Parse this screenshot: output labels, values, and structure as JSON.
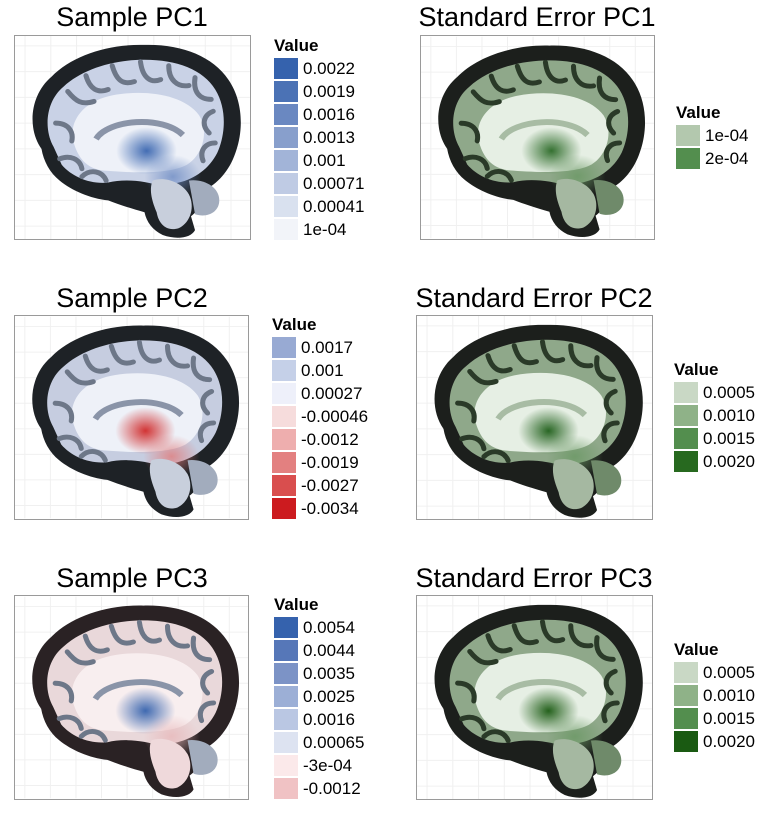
{
  "chart_data": [
    {
      "type": "heatmap",
      "title": "Sample PC1",
      "legend": {
        "title": "Value",
        "labels": [
          "0.0022",
          "0.0019",
          "0.0016",
          "0.0013",
          "0.001",
          "0.00071",
          "0.00041",
          "1e-04"
        ],
        "colors": [
          "#3562ad",
          "#4b72b5",
          "#6a88c1",
          "#889fcc",
          "#a2b4d8",
          "#bfcbe4",
          "#d9e1ef",
          "#f2f4f9"
        ]
      },
      "brain": {
        "theme": "blue",
        "hot": "#3a66b0",
        "accent": "#6e8cc4"
      }
    },
    {
      "type": "heatmap",
      "title": "Standard Error PC1",
      "legend": {
        "title": "Value",
        "labels": [
          "1e-04",
          "2e-04"
        ],
        "colors": [
          "#b3c8ae",
          "#538e4e"
        ]
      },
      "brain": {
        "theme": "green",
        "hot": "#2b6a27",
        "accent": "#6a9864"
      }
    },
    {
      "type": "heatmap",
      "title": "Sample PC2",
      "legend": {
        "title": "Value",
        "labels": [
          "0.0017",
          "0.001",
          "0.00027",
          "-0.00046",
          "-0.0012",
          "-0.0019",
          "-0.0027",
          "-0.0034"
        ],
        "colors": [
          "#98aad3",
          "#c5d0e8",
          "#eef0fa",
          "#f6dcdc",
          "#eeaeae",
          "#e38080",
          "#d94e4e",
          "#cc1b1f"
        ]
      },
      "brain": {
        "theme": "red",
        "hot": "#d02a2a",
        "accent": "#e07c7c"
      }
    },
    {
      "type": "heatmap",
      "title": "Standard Error PC2",
      "legend": {
        "title": "Value",
        "labels": [
          "0.0005",
          "0.0010",
          "0.0015",
          "0.0020"
        ],
        "colors": [
          "#c9d8c5",
          "#8fb288",
          "#538e4e",
          "#27691f"
        ]
      },
      "brain": {
        "theme": "green",
        "hot": "#1f5f1a",
        "accent": "#6a9864"
      }
    },
    {
      "type": "heatmap",
      "title": "Sample PC3",
      "legend": {
        "title": "Value",
        "labels": [
          "0.0054",
          "0.0044",
          "0.0035",
          "0.0025",
          "0.0016",
          "0.00065",
          "-3e-04",
          "-0.0012"
        ],
        "colors": [
          "#3562ad",
          "#5677b8",
          "#7c93c6",
          "#9cafd6",
          "#bac7e3",
          "#dde3f1",
          "#fbe9ea",
          "#f0c2c4"
        ]
      },
      "brain": {
        "theme": "pink",
        "hot": "#3562ad",
        "accent": "#e8b8ba"
      }
    },
    {
      "type": "heatmap",
      "title": "Standard Error PC3",
      "legend": {
        "title": "Value",
        "labels": [
          "0.0005",
          "0.0010",
          "0.0015",
          "0.0020"
        ],
        "colors": [
          "#c9d8c5",
          "#8fb288",
          "#538e4e",
          "#1a5a12"
        ]
      },
      "brain": {
        "theme": "green",
        "hot": "#1a5a12",
        "accent": "#6a9864"
      }
    }
  ]
}
